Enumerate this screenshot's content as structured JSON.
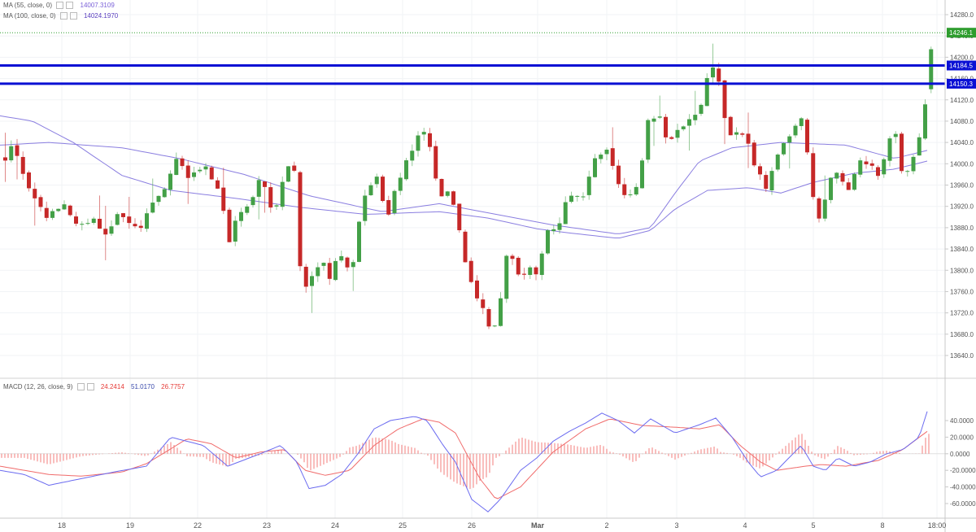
{
  "legends": {
    "ma55": {
      "label": "MA (55, close, 0)",
      "value": "14007.3109"
    },
    "ma100": {
      "label": "MA (100, close, 0)",
      "value": "14024.1970"
    },
    "macd": {
      "label": "MACD (12, 26, close, 9)",
      "hist": "24.2414",
      "macd": "51.0170",
      "signal": "26.7757"
    }
  },
  "colors": {
    "up": "#43a047",
    "down": "#c62828",
    "ma": "#8a7ee0",
    "macd_line": "#6b6bf0",
    "signal_line": "#f06b6b",
    "level_line": "#0a10d4",
    "price_tag": "#2e9d2e"
  },
  "chart_data": [
    {
      "type": "candlestick",
      "title": "",
      "price_axis": {
        "ticks": [
          "14280.0",
          "14240.0",
          "14200.0",
          "14160.0",
          "14120.0",
          "14080.0",
          "14040.0",
          "14000.0",
          "13960.0",
          "13920.0",
          "13880.0",
          "13840.0",
          "13800.0",
          "13760.0",
          "13720.0",
          "13680.0",
          "13640.0"
        ],
        "range": [
          13600,
          14300
        ]
      },
      "time_axis": {
        "ticks": [
          "18",
          "19",
          "22",
          "23",
          "24",
          "25",
          "26",
          "Mar",
          "2",
          "3",
          "4",
          "5",
          "8",
          "18:00"
        ]
      },
      "level_lines": [
        {
          "value": 14184.5,
          "label": "14184.5"
        },
        {
          "value": 14150.3,
          "label": "14150.3"
        }
      ],
      "last_price": {
        "value": 14246.1,
        "label": "14246.1"
      },
      "anchors": [
        [
          0,
          14010
        ],
        [
          10,
          14038
        ],
        [
          30,
          13945
        ],
        [
          50,
          13900
        ],
        [
          70,
          13925
        ],
        [
          90,
          13880
        ],
        [
          110,
          13895
        ],
        [
          125,
          13862
        ],
        [
          140,
          13910
        ],
        [
          165,
          13870
        ],
        [
          180,
          13925
        ],
        [
          200,
          13965
        ],
        [
          210,
          14012
        ],
        [
          225,
          13972
        ],
        [
          245,
          13995
        ],
        [
          265,
          13938
        ],
        [
          275,
          13850
        ],
        [
          285,
          13905
        ],
        [
          300,
          13928
        ],
        [
          315,
          13975
        ],
        [
          330,
          13900
        ],
        [
          345,
          13998
        ],
        [
          355,
          13990
        ],
        [
          365,
          13752
        ],
        [
          375,
          13790
        ],
        [
          390,
          13818
        ],
        [
          400,
          13780
        ],
        [
          410,
          13836
        ],
        [
          425,
          13790
        ],
        [
          440,
          13935
        ],
        [
          455,
          13980
        ],
        [
          470,
          13902
        ],
        [
          480,
          13960
        ],
        [
          500,
          14025
        ],
        [
          510,
          14060
        ],
        [
          520,
          14050
        ],
        [
          528,
          13975
        ],
        [
          535,
          13940
        ],
        [
          548,
          13945
        ],
        [
          555,
          13902
        ],
        [
          565,
          13822
        ],
        [
          578,
          13755
        ],
        [
          590,
          13720
        ],
        [
          598,
          13672
        ],
        [
          610,
          13755
        ],
        [
          618,
          13848
        ],
        [
          632,
          13785
        ],
        [
          645,
          13810
        ],
        [
          655,
          13792
        ],
        [
          665,
          13870
        ],
        [
          680,
          13875
        ],
        [
          690,
          13940
        ],
        [
          710,
          13932
        ],
        [
          725,
          14008
        ],
        [
          740,
          14030
        ],
        [
          755,
          13952
        ],
        [
          770,
          13938
        ],
        [
          780,
          13972
        ],
        [
          790,
          14085
        ],
        [
          805,
          14090
        ],
        [
          815,
          14032
        ],
        [
          825,
          14065
        ],
        [
          840,
          14080
        ],
        [
          855,
          14105
        ],
        [
          865,
          14180
        ],
        [
          875,
          14178
        ],
        [
          880,
          14135
        ],
        [
          888,
          14050
        ],
        [
          895,
          14055
        ],
        [
          910,
          14055
        ],
        [
          920,
          14000
        ],
        [
          935,
          13955
        ],
        [
          950,
          14020
        ],
        [
          965,
          14050
        ],
        [
          980,
          14090
        ],
        [
          992,
          13945
        ],
        [
          1000,
          13895
        ],
        [
          1010,
          13950
        ],
        [
          1020,
          13990
        ],
        [
          1035,
          13945
        ],
        [
          1050,
          14010
        ],
        [
          1062,
          14000
        ],
        [
          1075,
          13975
        ],
        [
          1085,
          14045
        ],
        [
          1095,
          14060
        ],
        [
          1100,
          13990
        ],
        [
          1110,
          13985
        ],
        [
          1125,
          14060
        ],
        [
          1132,
          14120
        ],
        [
          1140,
          14246
        ]
      ],
      "ma55": [
        [
          0,
          14035
        ],
        [
          60,
          14040
        ],
        [
          150,
          14030
        ],
        [
          220,
          14010
        ],
        [
          300,
          13980
        ],
        [
          380,
          13940
        ],
        [
          470,
          13910
        ],
        [
          540,
          13925
        ],
        [
          610,
          13905
        ],
        [
          680,
          13885
        ],
        [
          760,
          13868
        ],
        [
          800,
          13880
        ],
        [
          830,
          13945
        ],
        [
          860,
          14005
        ],
        [
          900,
          14030
        ],
        [
          960,
          14040
        ],
        [
          1040,
          14035
        ],
        [
          1100,
          14010
        ],
        [
          1140,
          14025
        ]
      ],
      "ma100": [
        [
          0,
          14090
        ],
        [
          40,
          14080
        ],
        [
          90,
          14040
        ],
        [
          150,
          13978
        ],
        [
          210,
          13950
        ],
        [
          290,
          13935
        ],
        [
          370,
          13918
        ],
        [
          450,
          13905
        ],
        [
          540,
          13910
        ],
        [
          600,
          13898
        ],
        [
          660,
          13878
        ],
        [
          700,
          13870
        ],
        [
          760,
          13860
        ],
        [
          800,
          13875
        ],
        [
          830,
          13915
        ],
        [
          870,
          13950
        ],
        [
          920,
          13955
        ],
        [
          960,
          13945
        ],
        [
          1000,
          13965
        ],
        [
          1050,
          13982
        ],
        [
          1100,
          13990
        ],
        [
          1140,
          14005
        ]
      ]
    },
    {
      "type": "line",
      "title": "MACD (12, 26, close, 9)",
      "y_axis": {
        "ticks": [
          "40.0000",
          "20.0000",
          "0.0000",
          "-20.0000",
          "-40.0000",
          "-60.0000"
        ],
        "range": [
          -80,
          60
        ]
      },
      "series": [
        {
          "name": "MACD",
          "values": [
            [
              0,
              -20
            ],
            [
              30,
              -25
            ],
            [
              60,
              -38
            ],
            [
              100,
              -30
            ],
            [
              140,
              -22
            ],
            [
              180,
              -15
            ],
            [
              210,
              20
            ],
            [
              250,
              10
            ],
            [
              280,
              -15
            ],
            [
              320,
              0
            ],
            [
              345,
              10
            ],
            [
              365,
              -10
            ],
            [
              380,
              -42
            ],
            [
              400,
              -38
            ],
            [
              420,
              -25
            ],
            [
              440,
              0
            ],
            [
              460,
              30
            ],
            [
              480,
              40
            ],
            [
              510,
              45
            ],
            [
              525,
              40
            ],
            [
              545,
              10
            ],
            [
              560,
              -10
            ],
            [
              580,
              -55
            ],
            [
              600,
              -70
            ],
            [
              615,
              -55
            ],
            [
              640,
              -20
            ],
            [
              660,
              -5
            ],
            [
              680,
              15
            ],
            [
              700,
              27
            ],
            [
              720,
              37
            ],
            [
              740,
              49
            ],
            [
              760,
              40
            ],
            [
              780,
              25
            ],
            [
              800,
              42
            ],
            [
              830,
              25
            ],
            [
              860,
              35
            ],
            [
              880,
              43
            ],
            [
              900,
              20
            ],
            [
              920,
              -10
            ],
            [
              935,
              -28
            ],
            [
              955,
              -20
            ],
            [
              970,
              -5
            ],
            [
              985,
              10
            ],
            [
              1000,
              -15
            ],
            [
              1015,
              -20
            ],
            [
              1030,
              -5
            ],
            [
              1050,
              -15
            ],
            [
              1070,
              -10
            ],
            [
              1090,
              0
            ],
            [
              1110,
              5
            ],
            [
              1130,
              20
            ],
            [
              1140,
              51
            ]
          ]
        },
        {
          "name": "Signal",
          "values": [
            [
              0,
              -15
            ],
            [
              60,
              -25
            ],
            [
              100,
              -27
            ],
            [
              150,
              -22
            ],
            [
              180,
              -12
            ],
            [
              230,
              18
            ],
            [
              260,
              12
            ],
            [
              290,
              -5
            ],
            [
              320,
              2
            ],
            [
              350,
              5
            ],
            [
              375,
              -20
            ],
            [
              400,
              -26
            ],
            [
              430,
              -20
            ],
            [
              460,
              10
            ],
            [
              490,
              30
            ],
            [
              520,
              42
            ],
            [
              540,
              38
            ],
            [
              560,
              25
            ],
            [
              590,
              -30
            ],
            [
              610,
              -55
            ],
            [
              640,
              -40
            ],
            [
              680,
              2
            ],
            [
              720,
              30
            ],
            [
              750,
              42
            ],
            [
              790,
              34
            ],
            [
              830,
              32
            ],
            [
              860,
              30
            ],
            [
              885,
              35
            ],
            [
              910,
              10
            ],
            [
              935,
              -10
            ],
            [
              955,
              -20
            ],
            [
              990,
              -15
            ],
            [
              1010,
              -13
            ],
            [
              1040,
              -15
            ],
            [
              1080,
              -8
            ],
            [
              1110,
              5
            ],
            [
              1140,
              27
            ]
          ]
        }
      ]
    }
  ]
}
